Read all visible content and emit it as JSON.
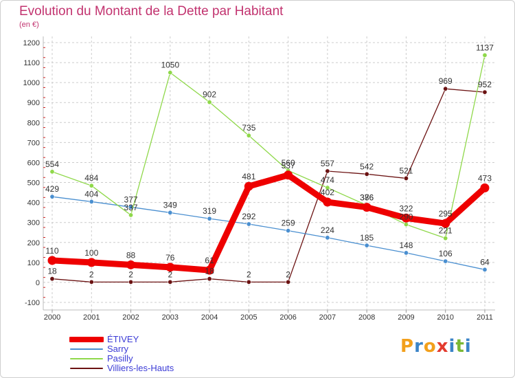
{
  "header": {
    "title": "Evolution du Montant de la Dette par Habitant",
    "subtitle": "(en €)"
  },
  "brand": {
    "letters": [
      "P",
      "r",
      "o",
      "x",
      "i",
      "t",
      "i"
    ]
  },
  "chart_data": {
    "type": "line",
    "x": [
      "2000",
      "2001",
      "2002",
      "2003",
      "2004",
      "2005",
      "2006",
      "2007",
      "2008",
      "2009",
      "2010",
      "2011"
    ],
    "ylim": [
      -100,
      1200
    ],
    "yticks": [
      -100,
      0,
      100,
      200,
      300,
      400,
      500,
      600,
      700,
      800,
      900,
      1000,
      1100,
      1200
    ],
    "grid": "horizontal dashed",
    "legend_position": "bottom-left",
    "series": [
      {
        "name": "ÉTIVEY",
        "color": "#ee0000",
        "values": [
          110,
          100,
          88,
          76,
          61,
          481,
          537,
          402,
          376,
          322,
          295,
          473
        ]
      },
      {
        "name": "Sarry",
        "color": "#4a8fd0",
        "values": [
          429,
          404,
          377,
          349,
          319,
          292,
          259,
          224,
          185,
          148,
          106,
          64
        ]
      },
      {
        "name": "Pasilly",
        "color": "#8fd84a",
        "values": [
          554,
          484,
          337,
          1050,
          902,
          735,
          560,
          474,
          386,
          290,
          221,
          1137
        ]
      },
      {
        "name": "Villiers-les-Hauts",
        "color": "#6b1212",
        "values": [
          18,
          2,
          2,
          2,
          18,
          2,
          2,
          557,
          542,
          521,
          969,
          952
        ]
      }
    ]
  }
}
